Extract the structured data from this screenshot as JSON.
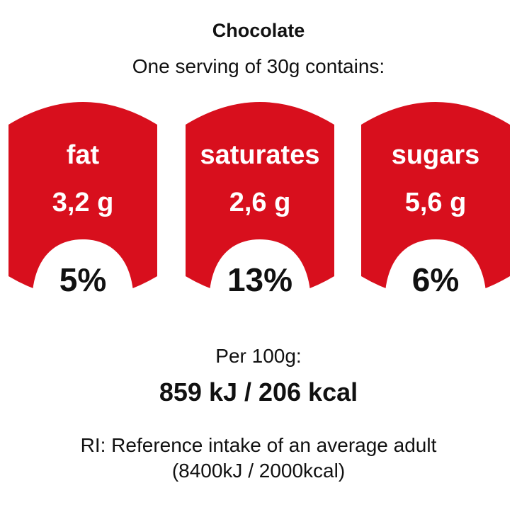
{
  "product": {
    "name": "Chocolate",
    "serving_text": "One serving of 30g contains:"
  },
  "badges": [
    {
      "name": "fat",
      "amount": "3,2 g",
      "percent": "5%"
    },
    {
      "name": "saturates",
      "amount": "2,6 g",
      "percent": "13%"
    },
    {
      "name": "sugars",
      "amount": "5,6 g",
      "percent": "6%"
    }
  ],
  "per_100g": {
    "label": "Per 100g:",
    "energy": "859 kJ / 206 kcal"
  },
  "reference": {
    "line1": "RI: Reference intake of an average adult",
    "line2": "(8400kJ / 2000kcal)"
  },
  "colors": {
    "badge_red": "#d80f1d",
    "badge_inner": "#ffffff"
  }
}
